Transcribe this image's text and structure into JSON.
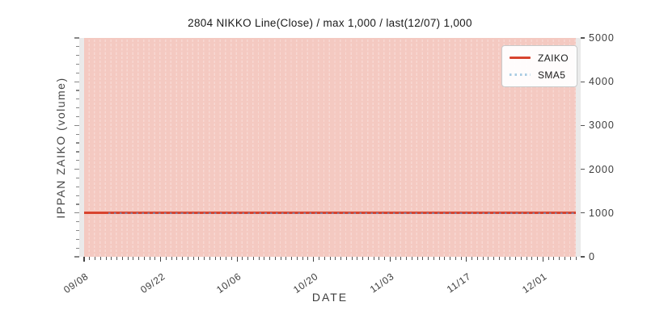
{
  "chart_data": {
    "type": "line",
    "title": "2804 NIKKO Line(Close) / max 1,000 / last(12/07) 1,000",
    "xlabel": "DATE",
    "ylabel": "IPPAN ZAIKO (volume)",
    "x_tick_labels": [
      "09/08",
      "09/22",
      "10/06",
      "10/20",
      "11/03",
      "11/17",
      "12/01"
    ],
    "x_major_tick_interval_days": 14,
    "x_minor_tick_interval": "1 day",
    "x_range": [
      "09/08",
      "12/07"
    ],
    "x_range_days": 90,
    "y_ticks": [
      0,
      1000,
      2000,
      3000,
      4000,
      5000
    ],
    "ylim": [
      0,
      5000
    ],
    "y_minor_tick_interval": 200,
    "series": [
      {
        "name": "ZAIKO",
        "line_style": "solid",
        "color": "#d8432e",
        "shape": "constant",
        "y": 1000,
        "x_start": "09/08",
        "x_end": "12/07"
      },
      {
        "name": "SMA5",
        "line_style": "dotted",
        "color": "#a9cbe3",
        "shape": "constant",
        "y": 1000,
        "x_start": "09/12",
        "x_end": "12/07"
      }
    ],
    "legend": {
      "position": "upper right",
      "entries": [
        {
          "label": "ZAIKO",
          "style": "solid",
          "color": "#d8432e"
        },
        {
          "label": "SMA5",
          "style": "dotted",
          "color": "#a9cbe3"
        }
      ]
    },
    "grid": {
      "vertical_daily_dashed": true,
      "horizontal": false
    },
    "annotations": {
      "max_value": "1,000",
      "last_date": "12/07",
      "last_value": "1,000"
    },
    "colors": {
      "figure_bg": "#ffffff",
      "axes_bg": "#eaeaea",
      "span_bg": "#f4c9c1",
      "span_stripe": "#f7d8d2",
      "sma5_over_line_dots": "#877f9d",
      "tick_label": "#3d3d3d",
      "title_text": "#1a1a1a"
    }
  }
}
